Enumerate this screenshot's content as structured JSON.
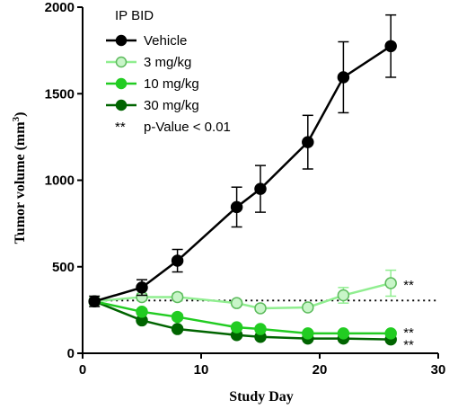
{
  "chart_data": {
    "type": "line",
    "title": "",
    "xlabel": "Study Day",
    "ylabel": "Tumor volume (mm",
    "ylabel_superscript": "3",
    "ylabel_suffix": ")",
    "xlim": [
      0,
      30
    ],
    "ylim": [
      0,
      2000
    ],
    "x_ticks": [
      0,
      10,
      20,
      30
    ],
    "y_ticks": [
      0,
      500,
      1000,
      1500,
      2000
    ],
    "grid": false,
    "legend_placement": "top-left",
    "legend_title": "IP BID",
    "reference_line": {
      "y": 305,
      "style": "dotted"
    },
    "significance_note": {
      "marker": "**",
      "text": "p-Value < 0.01"
    },
    "series": [
      {
        "name": "Vehicle",
        "color": "#000000",
        "fill": "#000000",
        "x": [
          1,
          5,
          8,
          13,
          15,
          19,
          22,
          26
        ],
        "y": [
          300,
          380,
          535,
          845,
          950,
          1220,
          1595,
          1775
        ],
        "err": [
          30,
          45,
          65,
          115,
          135,
          155,
          205,
          180
        ],
        "significance": ""
      },
      {
        "name": "3 mg/kg",
        "color": "#90ee90",
        "fill": "#c8f5c8",
        "x": [
          1,
          5,
          8,
          13,
          15,
          19,
          22,
          26
        ],
        "y": [
          300,
          325,
          325,
          290,
          260,
          265,
          335,
          405
        ],
        "err": [
          20,
          20,
          20,
          15,
          15,
          15,
          45,
          75
        ],
        "significance": "**"
      },
      {
        "name": "10 mg/kg",
        "color": "#22cc22",
        "fill": "#22cc22",
        "x": [
          1,
          5,
          8,
          13,
          15,
          19,
          22,
          26
        ],
        "y": [
          300,
          240,
          210,
          150,
          140,
          115,
          115,
          115
        ],
        "err": [
          15,
          15,
          15,
          10,
          10,
          10,
          10,
          10
        ],
        "significance": "**"
      },
      {
        "name": "30 mg/kg",
        "color": "#006400",
        "fill": "#006400",
        "x": [
          1,
          5,
          8,
          13,
          15,
          19,
          22,
          26
        ],
        "y": [
          300,
          190,
          140,
          105,
          95,
          85,
          85,
          80
        ],
        "err": [
          12,
          12,
          10,
          8,
          8,
          8,
          8,
          8
        ],
        "significance": "**"
      }
    ]
  }
}
